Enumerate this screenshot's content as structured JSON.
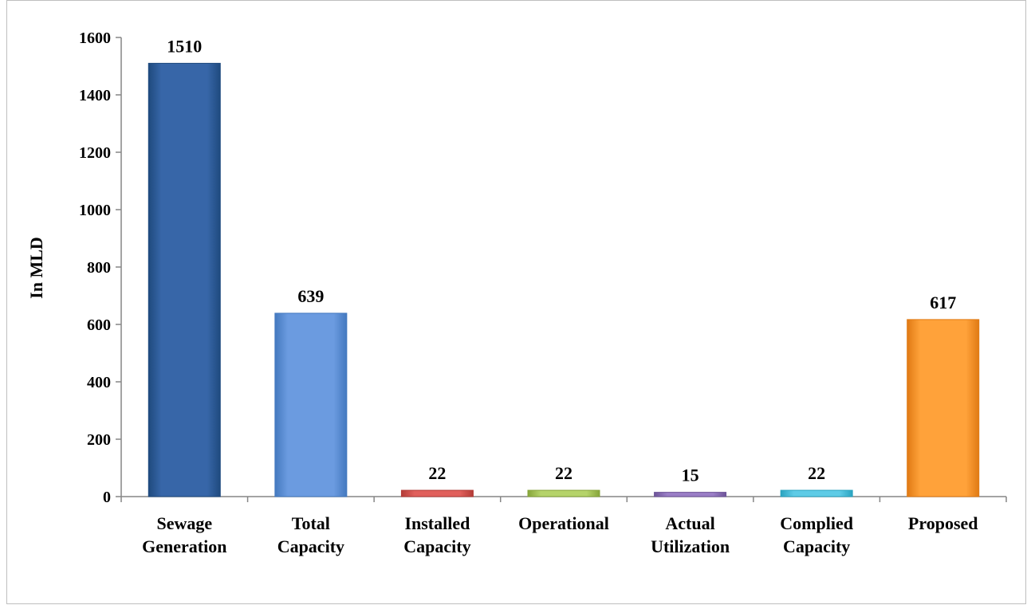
{
  "chart_data": {
    "type": "bar",
    "title": "",
    "xlabel": "",
    "ylabel": "In MLD",
    "ylim": [
      0,
      1600
    ],
    "yticks": [
      0,
      200,
      400,
      600,
      800,
      1000,
      1200,
      1400,
      1600
    ],
    "grid": false,
    "legend": "none",
    "categories": [
      [
        "Sewage",
        "Generation"
      ],
      [
        "Total",
        "Capacity"
      ],
      [
        "Installed",
        "Capacity"
      ],
      [
        "Operational"
      ],
      [
        "Actual",
        "Utilization"
      ],
      [
        "Complied",
        "Capacity"
      ],
      [
        "Proposed"
      ]
    ],
    "values": [
      1510,
      639,
      22,
      22,
      15,
      22,
      617
    ],
    "data_labels": [
      "1510",
      "639",
      "22",
      "22",
      "15",
      "22",
      "617"
    ],
    "colors": [
      [
        "#3766a8",
        "#1f4a7e"
      ],
      [
        "#6b9be0",
        "#4479bf"
      ],
      [
        "#e0605c",
        "#b33c37"
      ],
      [
        "#b5d36a",
        "#86a53a"
      ],
      [
        "#9a7ec6",
        "#6d5498"
      ],
      [
        "#5ecbe6",
        "#2aa3c0"
      ],
      [
        "#ffa23a",
        "#e07a14"
      ]
    ]
  }
}
